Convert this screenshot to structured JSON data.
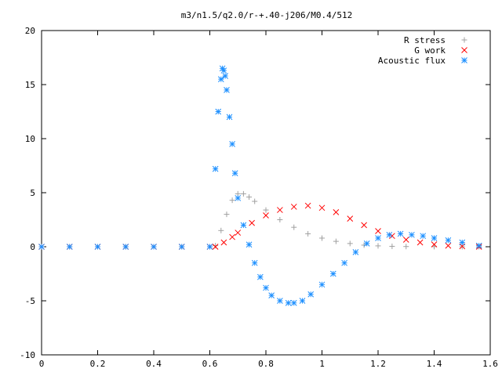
{
  "chart_data": {
    "type": "scatter",
    "title": "m3/n1.5/q2.0/r-+.40-j206/M0.4/512",
    "xlabel": "",
    "ylabel": "",
    "xlim": [
      0,
      1.6
    ],
    "ylim": [
      -10,
      20
    ],
    "x_ticks": [
      "0",
      "0.2",
      "0.4",
      "0.6",
      "0.8",
      "1",
      "1.2",
      "1.4",
      "1.6"
    ],
    "y_ticks": [
      "-10",
      "-5",
      "0",
      "5",
      "10",
      "15",
      "20"
    ],
    "grid": false,
    "legend_position": "top-right",
    "series": [
      {
        "name": "R stress",
        "marker": "plus",
        "color": "#a0a0a0",
        "x": [
          0.0,
          0.1,
          0.2,
          0.3,
          0.4,
          0.5,
          0.6,
          0.62,
          0.64,
          0.66,
          0.68,
          0.7,
          0.72,
          0.74,
          0.76,
          0.8,
          0.85,
          0.9,
          0.95,
          1.0,
          1.05,
          1.1,
          1.15,
          1.2,
          1.25,
          1.3,
          1.4,
          1.5,
          1.56
        ],
        "y": [
          0,
          0,
          0,
          0,
          0,
          0,
          0,
          0.1,
          1.5,
          3.0,
          4.3,
          4.9,
          4.9,
          4.6,
          4.2,
          3.4,
          2.5,
          1.8,
          1.2,
          0.8,
          0.5,
          0.3,
          0.15,
          0.08,
          0.04,
          0.02,
          0.01,
          0.0,
          0.0
        ]
      },
      {
        "name": "G work",
        "marker": "cross",
        "color": "#ff0000",
        "x": [
          0.0,
          0.1,
          0.2,
          0.3,
          0.4,
          0.5,
          0.6,
          0.62,
          0.65,
          0.68,
          0.7,
          0.75,
          0.8,
          0.85,
          0.9,
          0.95,
          1.0,
          1.05,
          1.1,
          1.15,
          1.2,
          1.25,
          1.3,
          1.35,
          1.4,
          1.45,
          1.5,
          1.56
        ],
        "y": [
          0,
          0,
          0,
          0,
          0,
          0,
          0,
          0.0,
          0.4,
          0.9,
          1.3,
          2.2,
          2.9,
          3.4,
          3.7,
          3.8,
          3.6,
          3.2,
          2.6,
          2.0,
          1.45,
          1.0,
          0.65,
          0.4,
          0.22,
          0.1,
          0.04,
          0.0
        ]
      },
      {
        "name": "Acoustic flux",
        "marker": "asterisk",
        "color": "#1e90ff",
        "x": [
          0.0,
          0.1,
          0.2,
          0.3,
          0.4,
          0.5,
          0.6,
          0.62,
          0.63,
          0.64,
          0.645,
          0.65,
          0.655,
          0.66,
          0.67,
          0.68,
          0.69,
          0.7,
          0.72,
          0.74,
          0.76,
          0.78,
          0.8,
          0.82,
          0.85,
          0.88,
          0.9,
          0.93,
          0.96,
          1.0,
          1.04,
          1.08,
          1.12,
          1.16,
          1.2,
          1.24,
          1.28,
          1.32,
          1.36,
          1.4,
          1.45,
          1.5,
          1.56
        ],
        "y": [
          0,
          0,
          0,
          0,
          0,
          0,
          0,
          7.2,
          12.5,
          15.5,
          16.5,
          16.3,
          15.8,
          14.5,
          12.0,
          9.5,
          6.8,
          4.5,
          2.0,
          0.2,
          -1.5,
          -2.8,
          -3.8,
          -4.5,
          -5.0,
          -5.2,
          -5.2,
          -5.0,
          -4.4,
          -3.5,
          -2.5,
          -1.5,
          -0.5,
          0.3,
          0.8,
          1.1,
          1.2,
          1.1,
          1.0,
          0.8,
          0.6,
          0.4,
          0.1
        ]
      }
    ]
  }
}
